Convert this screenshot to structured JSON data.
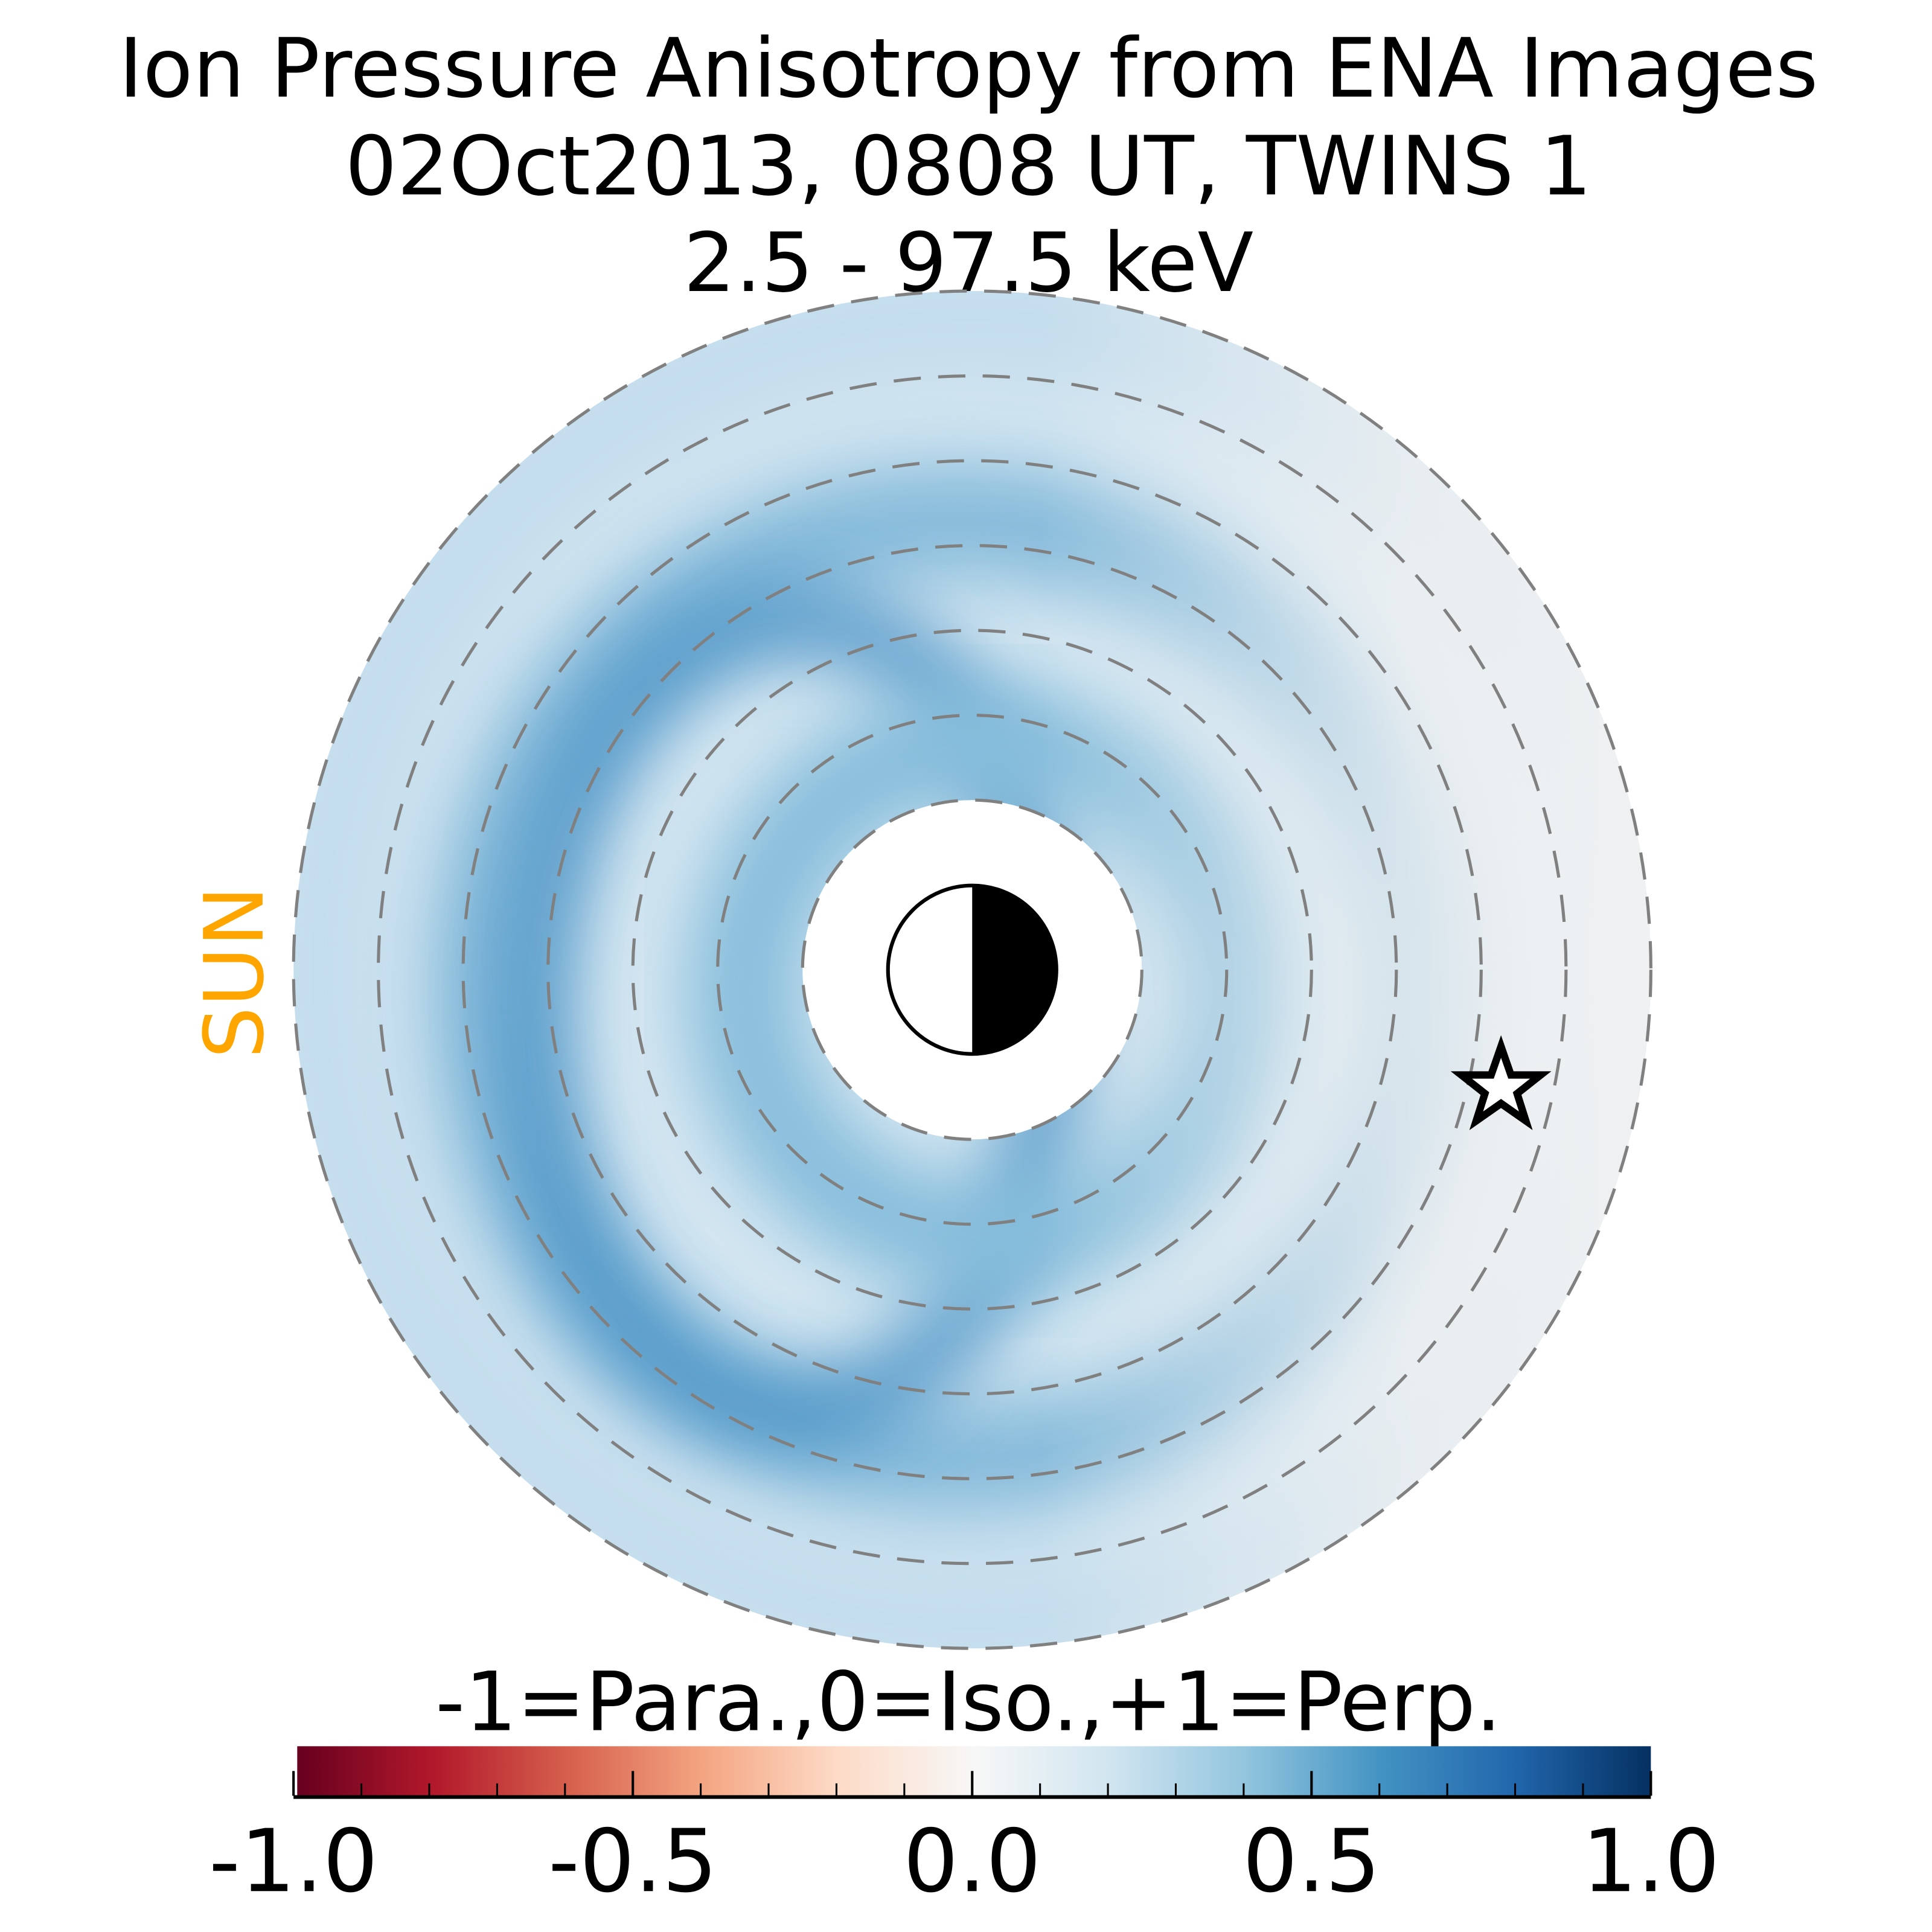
{
  "chart_data": {
    "type": "heatmap",
    "title": [
      "Ion Pressure Anisotropy from  ENA Images",
      "02Oct2013, 0808 UT,  TWINS 1",
      "2.5 - 97.5 keV"
    ],
    "annotations": {
      "sun_label": "SUN"
    },
    "colorbar": {
      "label": "-1=Para.,0=Iso.,+1=Perp.",
      "range": [
        -1.0,
        1.0
      ],
      "ticks": [
        -1.0,
        -0.5,
        0.0,
        0.5,
        1.0
      ],
      "tick_labels": [
        "-1.0",
        "-0.5",
        "0.0",
        "0.5",
        "1.0"
      ],
      "minor_tick_step": 0.1,
      "colormap": "RdBu",
      "colors": [
        "#67001f",
        "#b2182b",
        "#d6604d",
        "#f4a582",
        "#fddbc7",
        "#f7f7f7",
        "#d1e5f0",
        "#92c5de",
        "#4393c3",
        "#2166ac",
        "#053061"
      ]
    },
    "rings": {
      "count": 7
    },
    "values_description_levels": {
      "peak_left": 0.6,
      "ring_mean": 0.35,
      "right_edge": 0.02
    },
    "marker": "star"
  }
}
